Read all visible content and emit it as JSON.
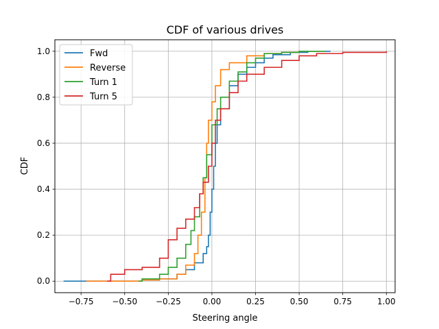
{
  "chart_data": {
    "type": "line",
    "title": "CDF of various drives",
    "xlabel": "Steering angle",
    "ylabel": "CDF",
    "xlim": [
      -0.9,
      1.05
    ],
    "ylim": [
      -0.05,
      1.05
    ],
    "xticks": [
      -0.75,
      -0.5,
      -0.25,
      0.0,
      0.25,
      0.5,
      0.75,
      1.0
    ],
    "xtick_labels": [
      "−0.75",
      "−0.50",
      "−0.25",
      "0.00",
      "0.25",
      "0.50",
      "0.75",
      "1.00"
    ],
    "yticks": [
      0.0,
      0.2,
      0.4,
      0.6,
      0.8,
      1.0
    ],
    "ytick_labels": [
      "0.0",
      "0.2",
      "0.4",
      "0.6",
      "0.8",
      "1.0"
    ],
    "grid": true,
    "legend_position": "top-left",
    "series": [
      {
        "name": "Fwd",
        "color": "#1f77b4",
        "points": [
          [
            -0.85,
            0.0
          ],
          [
            -0.4,
            0.005
          ],
          [
            -0.3,
            0.01
          ],
          [
            -0.2,
            0.03
          ],
          [
            -0.15,
            0.05
          ],
          [
            -0.1,
            0.08
          ],
          [
            -0.05,
            0.12
          ],
          [
            -0.03,
            0.15
          ],
          [
            -0.02,
            0.2
          ],
          [
            -0.01,
            0.3
          ],
          [
            0.0,
            0.4
          ],
          [
            0.01,
            0.5
          ],
          [
            0.02,
            0.6
          ],
          [
            0.03,
            0.68
          ],
          [
            0.05,
            0.75
          ],
          [
            0.1,
            0.85
          ],
          [
            0.15,
            0.9
          ],
          [
            0.2,
            0.93
          ],
          [
            0.25,
            0.95
          ],
          [
            0.3,
            0.97
          ],
          [
            0.35,
            0.985
          ],
          [
            0.45,
            0.995
          ],
          [
            0.55,
            1.0
          ],
          [
            0.68,
            1.0
          ]
        ]
      },
      {
        "name": "Reverse",
        "color": "#ff7f0e",
        "points": [
          [
            -0.72,
            0.0
          ],
          [
            -0.4,
            0.005
          ],
          [
            -0.3,
            0.01
          ],
          [
            -0.2,
            0.03
          ],
          [
            -0.15,
            0.07
          ],
          [
            -0.1,
            0.12
          ],
          [
            -0.08,
            0.2
          ],
          [
            -0.06,
            0.3
          ],
          [
            -0.04,
            0.45
          ],
          [
            -0.03,
            0.6
          ],
          [
            -0.02,
            0.7
          ],
          [
            0.0,
            0.78
          ],
          [
            0.02,
            0.85
          ],
          [
            0.05,
            0.92
          ],
          [
            0.1,
            0.95
          ],
          [
            0.2,
            0.98
          ],
          [
            0.3,
            0.99
          ],
          [
            0.4,
            0.995
          ],
          [
            0.5,
            1.0
          ],
          [
            0.62,
            1.0
          ]
        ]
      },
      {
        "name": "Turn 1",
        "color": "#2ca02c",
        "points": [
          [
            -0.42,
            0.0
          ],
          [
            -0.4,
            0.01
          ],
          [
            -0.3,
            0.03
          ],
          [
            -0.25,
            0.06
          ],
          [
            -0.2,
            0.1
          ],
          [
            -0.15,
            0.16
          ],
          [
            -0.12,
            0.22
          ],
          [
            -0.1,
            0.28
          ],
          [
            -0.07,
            0.38
          ],
          [
            -0.05,
            0.45
          ],
          [
            -0.03,
            0.55
          ],
          [
            0.0,
            0.68
          ],
          [
            0.03,
            0.75
          ],
          [
            0.05,
            0.8
          ],
          [
            0.1,
            0.87
          ],
          [
            0.15,
            0.91
          ],
          [
            0.2,
            0.95
          ],
          [
            0.25,
            0.97
          ],
          [
            0.3,
            0.99
          ],
          [
            0.4,
            0.995
          ],
          [
            0.5,
            1.0
          ],
          [
            0.65,
            1.0
          ]
        ]
      },
      {
        "name": "Turn 5",
        "color": "#d62728",
        "points": [
          [
            -0.6,
            0.0
          ],
          [
            -0.58,
            0.03
          ],
          [
            -0.5,
            0.05
          ],
          [
            -0.4,
            0.06
          ],
          [
            -0.3,
            0.1
          ],
          [
            -0.25,
            0.18
          ],
          [
            -0.2,
            0.23
          ],
          [
            -0.15,
            0.27
          ],
          [
            -0.1,
            0.32
          ],
          [
            -0.07,
            0.38
          ],
          [
            -0.05,
            0.43
          ],
          [
            -0.02,
            0.5
          ],
          [
            0.0,
            0.6
          ],
          [
            0.02,
            0.7
          ],
          [
            0.05,
            0.75
          ],
          [
            0.1,
            0.82
          ],
          [
            0.15,
            0.87
          ],
          [
            0.2,
            0.9
          ],
          [
            0.3,
            0.93
          ],
          [
            0.4,
            0.96
          ],
          [
            0.5,
            0.98
          ],
          [
            0.6,
            0.99
          ],
          [
            0.75,
            0.995
          ],
          [
            1.0,
            1.0
          ]
        ]
      }
    ]
  }
}
